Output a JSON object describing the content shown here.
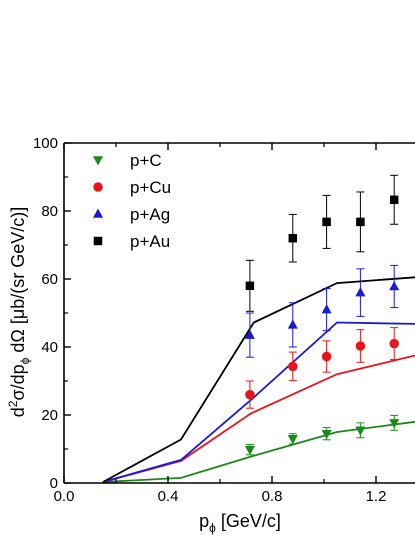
{
  "chart_data": {
    "type": "scatter",
    "title": "",
    "xlabel": {
      "main": "p",
      "sub": "ϕ",
      "unit": " [GeV/c]"
    },
    "ylabel": {
      "sup": "2",
      "parts": [
        "d",
        "σ/dp",
        "ϕ",
        " dΩ [μb/(sr GeV/c)]"
      ]
    },
    "xlim": [
      0.0,
      1.35
    ],
    "ylim": [
      0,
      100
    ],
    "x_ticks": [
      0.0,
      0.4,
      0.8,
      1.2
    ],
    "x_tick_labels": [
      "0.0",
      "0.4",
      "0.8",
      "1.2"
    ],
    "y_ticks": [
      0,
      20,
      40,
      60,
      80,
      100
    ],
    "y_tick_labels": [
      "0",
      "20",
      "40",
      "60",
      "80",
      "100"
    ],
    "legend_position": "top-left",
    "series": [
      {
        "name": "p+C",
        "color": "#1a8a1a",
        "marker": "triangle-down",
        "points": [
          {
            "x": 0.715,
            "y": 9.8,
            "err": 1.5
          },
          {
            "x": 0.88,
            "y": 13.0,
            "err": 1.5
          },
          {
            "x": 1.01,
            "y": 14.5,
            "err": 1.8
          },
          {
            "x": 1.14,
            "y": 15.5,
            "err": 2.2
          },
          {
            "x": 1.27,
            "y": 17.7,
            "err": 2.2
          }
        ],
        "curve": [
          [
            0.15,
            0.3
          ],
          [
            0.45,
            1.5
          ],
          [
            0.72,
            7.8
          ],
          [
            1.05,
            15.0
          ],
          [
            1.35,
            18.0
          ]
        ]
      },
      {
        "name": "p+Cu",
        "color": "#e8141c",
        "marker": "circle",
        "points": [
          {
            "x": 0.715,
            "y": 26.0,
            "err": 4.0
          },
          {
            "x": 0.88,
            "y": 34.3,
            "err": 4.2
          },
          {
            "x": 1.01,
            "y": 37.2,
            "err": 4.6
          },
          {
            "x": 1.14,
            "y": 40.3,
            "err": 4.8
          },
          {
            "x": 1.27,
            "y": 41.0,
            "err": 4.7
          }
        ],
        "curve": [
          [
            0.15,
            0.3
          ],
          [
            0.45,
            6.5
          ],
          [
            0.72,
            20.5
          ],
          [
            1.05,
            32.0
          ],
          [
            1.35,
            37.5
          ]
        ]
      },
      {
        "name": "p+Ag",
        "color": "#1a1ad6",
        "marker": "triangle-up",
        "points": [
          {
            "x": 0.715,
            "y": 43.5,
            "err": 6.5
          },
          {
            "x": 0.88,
            "y": 46.5,
            "err": 6.5
          },
          {
            "x": 1.01,
            "y": 51.0,
            "err": 6.2
          },
          {
            "x": 1.14,
            "y": 56.0,
            "err": 7.0
          },
          {
            "x": 1.27,
            "y": 57.8,
            "err": 6.2
          }
        ],
        "curve": [
          [
            0.15,
            0.3
          ],
          [
            0.45,
            6.8
          ],
          [
            0.72,
            24.5
          ],
          [
            1.05,
            47.2
          ],
          [
            1.35,
            46.8
          ]
        ]
      },
      {
        "name": "p+Au",
        "color": "#000000",
        "marker": "square",
        "points": [
          {
            "x": 0.715,
            "y": 58.0,
            "err": 7.5
          },
          {
            "x": 0.88,
            "y": 72.0,
            "err": 7.0
          },
          {
            "x": 1.01,
            "y": 76.8,
            "err": 7.8
          },
          {
            "x": 1.14,
            "y": 76.8,
            "err": 8.8
          },
          {
            "x": 1.27,
            "y": 83.3,
            "err": 7.2
          }
        ],
        "curve": [
          [
            0.15,
            0.3
          ],
          [
            0.45,
            12.8
          ],
          [
            0.73,
            47.2
          ],
          [
            1.05,
            58.8
          ],
          [
            1.35,
            60.5
          ]
        ]
      }
    ]
  }
}
